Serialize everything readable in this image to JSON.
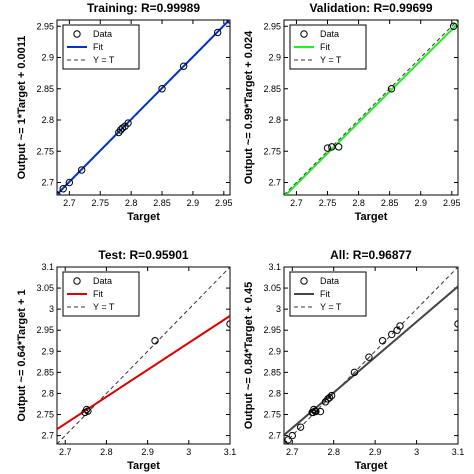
{
  "chart_data": [
    {
      "type": "scatter",
      "title": "Training: R=0.99989",
      "xlabel": "Target",
      "ylabel": "Output ~= 1*Target + 0.0011",
      "xlim": [
        2.68,
        2.96
      ],
      "ylim": [
        2.68,
        2.96
      ],
      "xticks": [
        "2.7",
        "2.75",
        "2.8",
        "2.85",
        "2.9",
        "2.95"
      ],
      "yticks": [
        "2.7",
        "2.75",
        "2.8",
        "2.85",
        "2.9",
        "2.95"
      ],
      "tick_values": [
        2.7,
        2.75,
        2.8,
        2.85,
        2.9,
        2.95
      ],
      "fit_color": "#0033cc",
      "fit": {
        "slope": 1.0,
        "intercept": 0.0011
      },
      "legend": {
        "position": "top-left",
        "entries": [
          "Data",
          "Fit",
          "Y = T"
        ]
      },
      "points": [
        [
          2.68,
          2.68
        ],
        [
          2.69,
          2.69
        ],
        [
          2.7,
          2.7
        ],
        [
          2.72,
          2.72
        ],
        [
          2.78,
          2.78
        ],
        [
          2.783,
          2.784
        ],
        [
          2.786,
          2.787
        ],
        [
          2.79,
          2.79
        ],
        [
          2.795,
          2.795
        ],
        [
          2.85,
          2.85
        ],
        [
          2.885,
          2.886
        ],
        [
          2.94,
          2.94
        ],
        [
          2.96,
          2.96
        ]
      ]
    },
    {
      "type": "scatter",
      "title": "Validation: R=0.99699",
      "xlabel": "Target",
      "ylabel": "Output ~= 0.99*Target + 0.024",
      "xlim": [
        2.68,
        2.96
      ],
      "ylim": [
        2.68,
        2.96
      ],
      "xticks": [
        "2.7",
        "2.75",
        "2.8",
        "2.85",
        "2.9",
        "2.95"
      ],
      "yticks": [
        "2.7",
        "2.75",
        "2.8",
        "2.85",
        "2.9",
        "2.95"
      ],
      "tick_values": [
        2.7,
        2.75,
        2.8,
        2.85,
        2.9,
        2.95
      ],
      "fit_color": "#22ee22",
      "fit": {
        "slope": 0.99,
        "intercept": 0.024
      },
      "legend": {
        "position": "top-left",
        "entries": [
          "Data",
          "Fit",
          "Y = T"
        ]
      },
      "points": [
        [
          2.75,
          2.755
        ],
        [
          2.757,
          2.757
        ],
        [
          2.768,
          2.757
        ],
        [
          2.853,
          2.85
        ],
        [
          2.953,
          2.95
        ]
      ]
    },
    {
      "type": "scatter",
      "title": "Test: R=0.95901",
      "xlabel": "Target",
      "ylabel": "Output ~= 0.64*Target + 1",
      "xlim": [
        2.68,
        3.1
      ],
      "ylim": [
        2.68,
        3.1
      ],
      "xticks": [
        "2.7",
        "2.8",
        "2.9",
        "3",
        "3.1"
      ],
      "yticks": [
        "2.7",
        "2.75",
        "2.8",
        "2.85",
        "2.9",
        "2.95",
        "3",
        "3.05",
        "3.1"
      ],
      "xtick_values": [
        2.7,
        2.8,
        2.9,
        3.0,
        3.1
      ],
      "ytick_values": [
        2.7,
        2.75,
        2.8,
        2.85,
        2.9,
        2.95,
        3.0,
        3.05,
        3.1
      ],
      "fit_color": "#dd0000",
      "fit": {
        "slope": 0.64,
        "intercept": 1.0
      },
      "legend": {
        "position": "top-left",
        "entries": [
          "Data",
          "Fit",
          "Y = T"
        ]
      },
      "points": [
        [
          2.748,
          2.755
        ],
        [
          2.752,
          2.762
        ],
        [
          2.755,
          2.758
        ],
        [
          2.918,
          2.925
        ],
        [
          3.1,
          2.965
        ]
      ]
    },
    {
      "type": "scatter",
      "title": "All: R=0.96877",
      "xlabel": "Target",
      "ylabel": "Output ~= 0.84*Target + 0.45",
      "xlim": [
        2.68,
        3.1
      ],
      "ylim": [
        2.68,
        3.1
      ],
      "xticks": [
        "2.7",
        "2.8",
        "2.9",
        "3",
        "3.1"
      ],
      "yticks": [
        "2.7",
        "2.75",
        "2.8",
        "2.85",
        "2.9",
        "2.95",
        "3",
        "3.05",
        "3.1"
      ],
      "xtick_values": [
        2.7,
        2.8,
        2.9,
        3.0,
        3.1
      ],
      "ytick_values": [
        2.7,
        2.75,
        2.8,
        2.85,
        2.9,
        2.95,
        3.0,
        3.05,
        3.1
      ],
      "fit_color": "#444444",
      "fit": {
        "slope": 0.84,
        "intercept": 0.45
      },
      "legend": {
        "position": "top-left",
        "entries": [
          "Data",
          "Fit",
          "Y = T"
        ]
      },
      "points": [
        [
          2.68,
          2.68
        ],
        [
          2.69,
          2.69
        ],
        [
          2.7,
          2.7
        ],
        [
          2.72,
          2.72
        ],
        [
          2.748,
          2.755
        ],
        [
          2.752,
          2.762
        ],
        [
          2.755,
          2.758
        ],
        [
          2.75,
          2.755
        ],
        [
          2.757,
          2.757
        ],
        [
          2.768,
          2.757
        ],
        [
          2.78,
          2.78
        ],
        [
          2.786,
          2.787
        ],
        [
          2.79,
          2.79
        ],
        [
          2.795,
          2.795
        ],
        [
          2.85,
          2.85
        ],
        [
          2.885,
          2.886
        ],
        [
          2.918,
          2.925
        ],
        [
          2.94,
          2.94
        ],
        [
          2.953,
          2.95
        ],
        [
          2.96,
          2.96
        ],
        [
          3.1,
          2.965
        ]
      ]
    }
  ]
}
